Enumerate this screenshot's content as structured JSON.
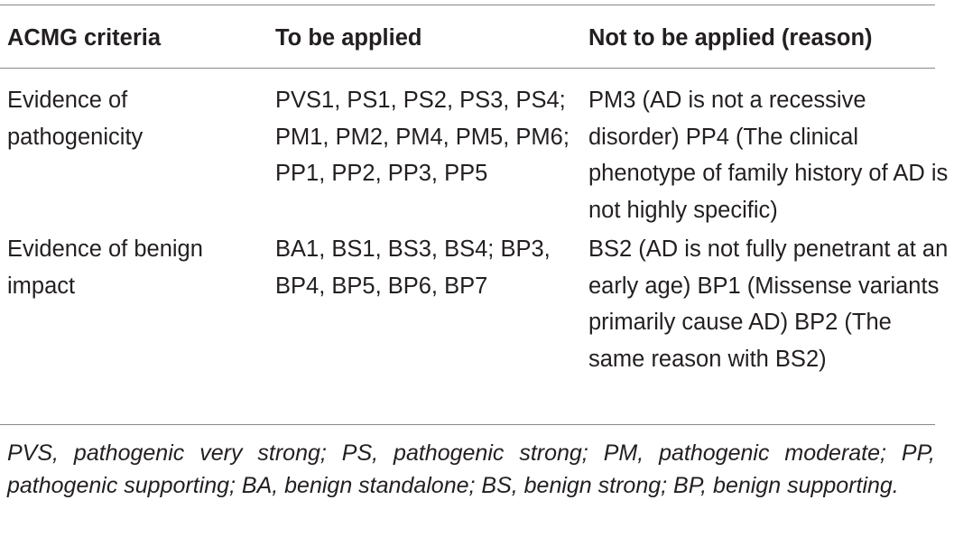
{
  "table": {
    "header": [
      "ACMG criteria",
      "To be applied",
      "Not to be applied (reason)"
    ],
    "rows": [
      [
        "Evidence of pathogenicity",
        "PVS1, PS1, PS2, PS3, PS4; PM1, PM2, PM4, PM5, PM6; PP1, PP2, PP3, PP5",
        "PM3 (AD is not a recessive disorder) PP4 (The clinical phenotype of family history of AD is not highly specific)"
      ],
      [
        "Evidence of benign impact",
        "BA1, BS1, BS3, BS4; BP3, BP4, BP5, BP6, BP7",
        "BS2 (AD is not fully penetrant at an early age) BP1 (Missense variants primarily cause AD) BP2 (The same reason with BS2)"
      ]
    ],
    "footnote": "PVS, pathogenic very strong; PS, pathogenic strong; PM, pathogenic moderate; PP, pathogenic supporting; BA, benign standalone; BS, benign strong; BP, benign supporting."
  }
}
